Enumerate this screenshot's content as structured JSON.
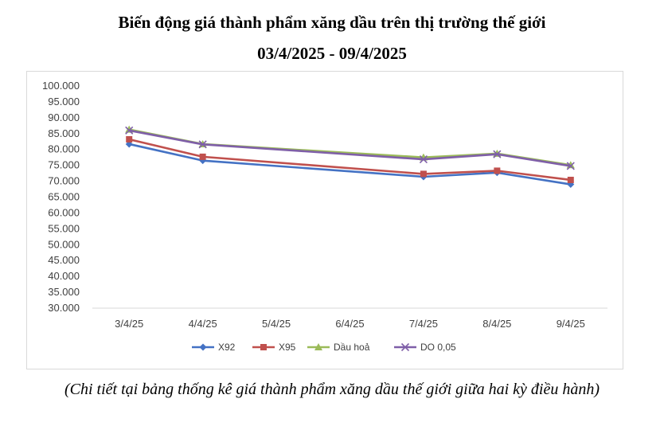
{
  "title_line1": "Biến động giá thành phẩm xăng dầu trên thị trường thế giới",
  "title_line2": "03/4/2025 - 09/4/2025",
  "caption": "(Chi tiết tại bảng thống kê giá thành phẩm xăng dầu thế giới giữa hai kỳ điều hành)",
  "chart_data": {
    "type": "line",
    "title": "",
    "xlabel": "",
    "ylabel": "",
    "categories": [
      "3/4/25",
      "4/4/25",
      "5/4/25",
      "6/4/25",
      "7/4/25",
      "8/4/25",
      "9/4/25"
    ],
    "ylim": [
      30000,
      100000
    ],
    "yticks": [
      "100.000",
      "95.000",
      "90.000",
      "85.000",
      "80.000",
      "75.000",
      "70.000",
      "65.000",
      "60.000",
      "55.000",
      "50.000",
      "45.000",
      "40.000",
      "35.000",
      "30.000"
    ],
    "grid": false,
    "legend_position": "bottom",
    "series": [
      {
        "name": "X92",
        "color": "#4472c4",
        "marker": "diamond",
        "values": [
          81700,
          76500,
          null,
          null,
          71400,
          72700,
          69000
        ]
      },
      {
        "name": "X95",
        "color": "#c0504d",
        "marker": "square",
        "values": [
          83200,
          77700,
          null,
          null,
          72300,
          73300,
          70400
        ]
      },
      {
        "name": "Dầu hoả",
        "color": "#9bbb59",
        "marker": "triangle",
        "values": [
          86300,
          81700,
          null,
          null,
          77500,
          78700,
          75100
        ]
      },
      {
        "name": "DO 0,05",
        "color": "#7f5fa8",
        "marker": "x",
        "values": [
          86000,
          81600,
          null,
          null,
          76900,
          78500,
          74800
        ]
      }
    ]
  }
}
